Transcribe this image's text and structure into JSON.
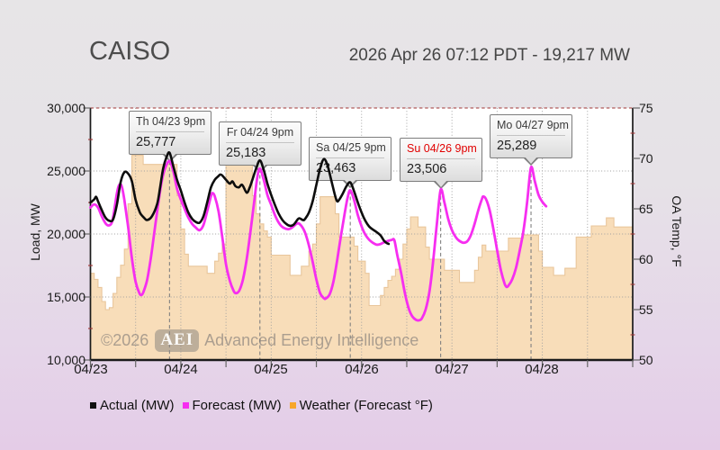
{
  "header": {
    "title": "CAISO",
    "subtitle": "2026 Apr 26 07:12 PDT - 19,217 MW"
  },
  "watermark": {
    "copyright": "©2026",
    "badge": "AEI",
    "name": "Advanced Energy Intelligence"
  },
  "legend": [
    {
      "label": "Actual (MW)",
      "color": "#111111"
    },
    {
      "label": "Forecast (MW)",
      "color": "#f62ef0"
    },
    {
      "label": "Weather (Forecast °F)",
      "color": "#f7a62a"
    }
  ],
  "chart_data": {
    "type": "line",
    "title": "CAISO",
    "x_axis": {
      "labels": [
        "04/23",
        "04/24",
        "04/25",
        "04/26",
        "04/27",
        "04/28"
      ],
      "range_hours": [
        0,
        144
      ],
      "tick_interval_hours": 12,
      "label_interval_hours": 24
    },
    "y_left": {
      "title": "Load, MW",
      "range": [
        10000,
        30000
      ],
      "tick_labels": [
        "30,000",
        "25,000",
        "20,000",
        "15,000",
        "10,000"
      ],
      "ticks": [
        30000,
        25000,
        20000,
        15000,
        10000
      ],
      "minor_tick_step": 2500,
      "gridlines": [
        25000,
        20000,
        15000
      ],
      "top_border_style": "dashed-red"
    },
    "y_right": {
      "title": "OA Temp, °F",
      "range": [
        50,
        75
      ],
      "tick_labels": [
        "75",
        "70",
        "65",
        "60",
        "55",
        "50"
      ],
      "ticks": [
        75,
        70,
        65,
        60,
        55,
        50
      ],
      "minor_tick_step": 2.5
    },
    "series": [
      {
        "name": "Actual (MW)",
        "axis": "left",
        "color": "#0d0d0d",
        "width": 2.6,
        "points": [
          [
            0,
            22500
          ],
          [
            1,
            22750
          ],
          [
            1.5,
            22950
          ],
          [
            2,
            22600
          ],
          [
            3,
            21900
          ],
          [
            4,
            21300
          ],
          [
            5,
            21050
          ],
          [
            6,
            21150
          ],
          [
            7,
            22300
          ],
          [
            8,
            24100
          ],
          [
            9,
            24900
          ],
          [
            10,
            24800
          ],
          [
            11,
            24200
          ],
          [
            12,
            22700
          ],
          [
            13,
            21800
          ],
          [
            13.5,
            21530
          ],
          [
            14.2,
            21300
          ],
          [
            15,
            21110
          ],
          [
            16.3,
            21390
          ],
          [
            17.7,
            22370
          ],
          [
            18.5,
            23700
          ],
          [
            19.3,
            25200
          ],
          [
            20.2,
            26100
          ],
          [
            21,
            26450
          ],
          [
            22,
            25400
          ],
          [
            23,
            24300
          ],
          [
            24,
            23450
          ],
          [
            25,
            22500
          ],
          [
            26,
            21700
          ],
          [
            27,
            21200
          ],
          [
            28,
            20950
          ],
          [
            29,
            20900
          ],
          [
            30,
            21400
          ],
          [
            31,
            22500
          ],
          [
            32,
            23700
          ],
          [
            33,
            24300
          ],
          [
            34,
            24600
          ],
          [
            34.5,
            24720
          ],
          [
            35,
            24650
          ],
          [
            36,
            24300
          ],
          [
            37,
            24000
          ],
          [
            37.7,
            24180
          ],
          [
            38.5,
            23800
          ],
          [
            39.4,
            23700
          ],
          [
            40.3,
            23900
          ],
          [
            41.5,
            23280
          ],
          [
            42.3,
            23700
          ],
          [
            43,
            24300
          ],
          [
            44,
            25200
          ],
          [
            45,
            25840
          ],
          [
            46,
            25100
          ],
          [
            47,
            24000
          ],
          [
            48,
            23100
          ],
          [
            49,
            22300
          ],
          [
            50,
            21600
          ],
          [
            51,
            21100
          ],
          [
            52,
            20800
          ],
          [
            53,
            20650
          ],
          [
            54,
            20750
          ],
          [
            55,
            21150
          ],
          [
            55.5,
            21250
          ],
          [
            56.5,
            21100
          ],
          [
            57,
            21200
          ],
          [
            58,
            21700
          ],
          [
            59,
            22600
          ],
          [
            60,
            23900
          ],
          [
            61,
            25200
          ],
          [
            62,
            25950
          ],
          [
            63,
            25400
          ],
          [
            64,
            24200
          ],
          [
            65,
            23000
          ],
          [
            65.5,
            22600
          ],
          [
            66,
            22700
          ],
          [
            67,
            23200
          ],
          [
            68,
            23800
          ],
          [
            69,
            24100
          ],
          [
            70,
            23400
          ],
          [
            71,
            22500
          ],
          [
            72,
            21700
          ],
          [
            73,
            21050
          ],
          [
            74,
            20600
          ],
          [
            75,
            20350
          ],
          [
            76,
            20150
          ],
          [
            77,
            19900
          ],
          [
            78,
            19450
          ],
          [
            78.7,
            19280
          ],
          [
            79.2,
            19217
          ]
        ]
      },
      {
        "name": "Forecast (MW)",
        "axis": "left",
        "color": "#f62ef0",
        "width": 2.8,
        "points": [
          [
            0,
            22100
          ],
          [
            1,
            22350
          ],
          [
            2,
            22100
          ],
          [
            3,
            21400
          ],
          [
            4,
            20850
          ],
          [
            4.7,
            20680
          ],
          [
            5.5,
            20800
          ],
          [
            6,
            21300
          ],
          [
            7,
            23200
          ],
          [
            7.6,
            23880
          ],
          [
            8.3,
            23800
          ],
          [
            9,
            22700
          ],
          [
            10,
            20600
          ],
          [
            11,
            18100
          ],
          [
            12,
            16200
          ],
          [
            13,
            15300
          ],
          [
            13.5,
            15160
          ],
          [
            14,
            15350
          ],
          [
            15,
            16300
          ],
          [
            16,
            18000
          ],
          [
            17,
            20200
          ],
          [
            18,
            22400
          ],
          [
            19,
            24300
          ],
          [
            20,
            25350
          ],
          [
            21,
            25777
          ],
          [
            22,
            25000
          ],
          [
            23,
            23600
          ],
          [
            24,
            22740
          ],
          [
            25,
            22000
          ],
          [
            26,
            21300
          ],
          [
            27,
            20800
          ],
          [
            28,
            20500
          ],
          [
            29,
            20300
          ],
          [
            30,
            20700
          ],
          [
            31,
            21800
          ],
          [
            32,
            23000
          ],
          [
            32.4,
            23250
          ],
          [
            33,
            23000
          ],
          [
            34,
            21800
          ],
          [
            35,
            19800
          ],
          [
            36,
            17600
          ],
          [
            37,
            16300
          ],
          [
            38,
            15500
          ],
          [
            38.6,
            15300
          ],
          [
            39.5,
            15500
          ],
          [
            40.5,
            16400
          ],
          [
            41.5,
            18000
          ],
          [
            42.5,
            20200
          ],
          [
            43.5,
            22600
          ],
          [
            44.3,
            24500
          ],
          [
            45,
            25183
          ],
          [
            46,
            24300
          ],
          [
            47,
            23100
          ],
          [
            48,
            22320
          ],
          [
            49,
            21500
          ],
          [
            50,
            20900
          ],
          [
            51,
            20550
          ],
          [
            52.5,
            20380
          ],
          [
            53.5,
            20500
          ],
          [
            55,
            20850
          ],
          [
            56,
            20650
          ],
          [
            57,
            20100
          ],
          [
            58,
            19100
          ],
          [
            59,
            17800
          ],
          [
            60,
            16400
          ],
          [
            61,
            15300
          ],
          [
            62,
            14900
          ],
          [
            62.5,
            14880
          ],
          [
            63.5,
            15200
          ],
          [
            64.5,
            16200
          ],
          [
            65.5,
            17900
          ],
          [
            66.5,
            19800
          ],
          [
            67.5,
            21600
          ],
          [
            68.3,
            22900
          ],
          [
            69,
            23463
          ],
          [
            70,
            22700
          ],
          [
            71,
            21500
          ],
          [
            72,
            20600
          ],
          [
            73,
            19950
          ],
          [
            74,
            19550
          ],
          [
            75,
            19300
          ],
          [
            76,
            19150
          ],
          [
            77,
            19200
          ],
          [
            78,
            19350
          ],
          [
            79,
            19450
          ],
          [
            80,
            19530
          ],
          [
            80.7,
            19500
          ],
          [
            81.5,
            18300
          ],
          [
            82.5,
            16900
          ],
          [
            83.5,
            15300
          ],
          [
            84.5,
            14100
          ],
          [
            85.5,
            13450
          ],
          [
            86.5,
            13180
          ],
          [
            87.3,
            13150
          ],
          [
            88,
            13300
          ],
          [
            89,
            14000
          ],
          [
            90,
            15400
          ],
          [
            91,
            17800
          ],
          [
            92,
            20800
          ],
          [
            93,
            23506
          ],
          [
            94,
            22500
          ],
          [
            95,
            21200
          ],
          [
            96,
            20300
          ],
          [
            97,
            19750
          ],
          [
            98,
            19450
          ],
          [
            99,
            19310
          ],
          [
            100,
            19400
          ],
          [
            101,
            19900
          ],
          [
            102,
            20800
          ],
          [
            103,
            21900
          ],
          [
            104,
            22800
          ],
          [
            104.3,
            22980
          ],
          [
            105,
            22800
          ],
          [
            106,
            21900
          ],
          [
            107,
            20400
          ],
          [
            108,
            18700
          ],
          [
            109,
            17100
          ],
          [
            110,
            16050
          ],
          [
            110.5,
            15800
          ],
          [
            111,
            15900
          ],
          [
            112,
            16400
          ],
          [
            113,
            17300
          ],
          [
            114,
            18700
          ],
          [
            115,
            20300
          ],
          [
            116,
            22600
          ],
          [
            117,
            25289
          ],
          [
            118,
            24200
          ],
          [
            119,
            23100
          ],
          [
            120,
            22550
          ],
          [
            121,
            22200
          ]
        ]
      },
      {
        "name": "Weather (Forecast °F)",
        "axis": "right",
        "color": "#f7a62a",
        "style": "step-area",
        "fill": "#f8ddb9",
        "edge": "#e9c69b",
        "hourly_values": [
          58.6,
          58.0,
          57.2,
          55.8,
          55.0,
          55.2,
          56.6,
          58.2,
          59.4,
          61.0,
          65.5,
          70.3,
          70.3,
          70.3,
          69.4,
          69.4,
          69.4,
          69.4,
          69.4,
          69.4,
          69.4,
          69.4,
          69.4,
          66.3,
          63.0,
          60.5,
          59.3,
          59.3,
          59.3,
          59.3,
          59.3,
          58.6,
          58.6,
          59.8,
          60.6,
          61.5,
          70.3,
          70.3,
          70.3,
          70.3,
          69.4,
          69.4,
          69.4,
          66.3,
          64.5,
          63.5,
          62.8,
          62.2,
          60.4,
          60.4,
          60.4,
          60.4,
          60.4,
          58.4,
          58.4,
          58.4,
          59.3,
          59.3,
          60.8,
          61.5,
          63.5,
          66.2,
          66.2,
          66.2,
          66.2,
          64.5,
          62.2,
          62.2,
          62.2,
          62.2,
          61.3,
          59.8,
          59.8,
          58.6,
          55.4,
          55.4,
          55.4,
          56.4,
          57.2,
          57.9,
          58.3,
          59.0,
          60.0,
          61.5,
          63.0,
          64.2,
          64.2,
          63.2,
          63.2,
          61.2,
          60.0,
          60.0,
          60.0,
          60.0,
          58.9,
          58.9,
          58.9,
          58.9,
          57.7,
          57.7,
          57.7,
          57.7,
          58.9,
          60.2,
          61.4,
          60.8,
          60.8,
          60.8,
          60.8,
          60.8,
          60.8,
          62.1,
          62.1,
          62.1,
          62.1,
          62.4,
          62.4,
          62.4,
          62.4,
          60.8,
          59.2,
          59.2,
          59.2,
          58.4,
          58.4,
          58.4,
          59.1,
          59.1,
          59.1,
          62.2,
          62.2,
          62.2,
          62.2,
          63.3,
          63.3,
          63.3,
          63.3,
          64.1,
          64.1,
          63.2,
          63.2,
          63.2,
          63.2,
          63.2
        ]
      }
    ],
    "annotations": [
      {
        "label": "Th 04/23 9pm",
        "value": "25,777",
        "hour": 21,
        "load": 25777,
        "today": false
      },
      {
        "label": "Fr 04/24 9pm",
        "value": "25,183",
        "hour": 45,
        "load": 25183,
        "today": false
      },
      {
        "label": "Sa 04/25 9pm",
        "value": "23,463",
        "hour": 69,
        "load": 23463,
        "today": false
      },
      {
        "label": "Su 04/26 9pm",
        "value": "23,506",
        "hour": 93,
        "load": 23506,
        "today": true
      },
      {
        "label": "Mo 04/27 9pm",
        "value": "25,289",
        "hour": 117,
        "load": 25289,
        "today": false
      }
    ],
    "plot": {
      "background": "#ffffff",
      "grid_color": "#9f9f9f",
      "spine_color": "#1a1a1a",
      "minor_tick_color": "#a33636",
      "top_border_color": "#a03434",
      "pointer_line_color": "#808080"
    }
  }
}
